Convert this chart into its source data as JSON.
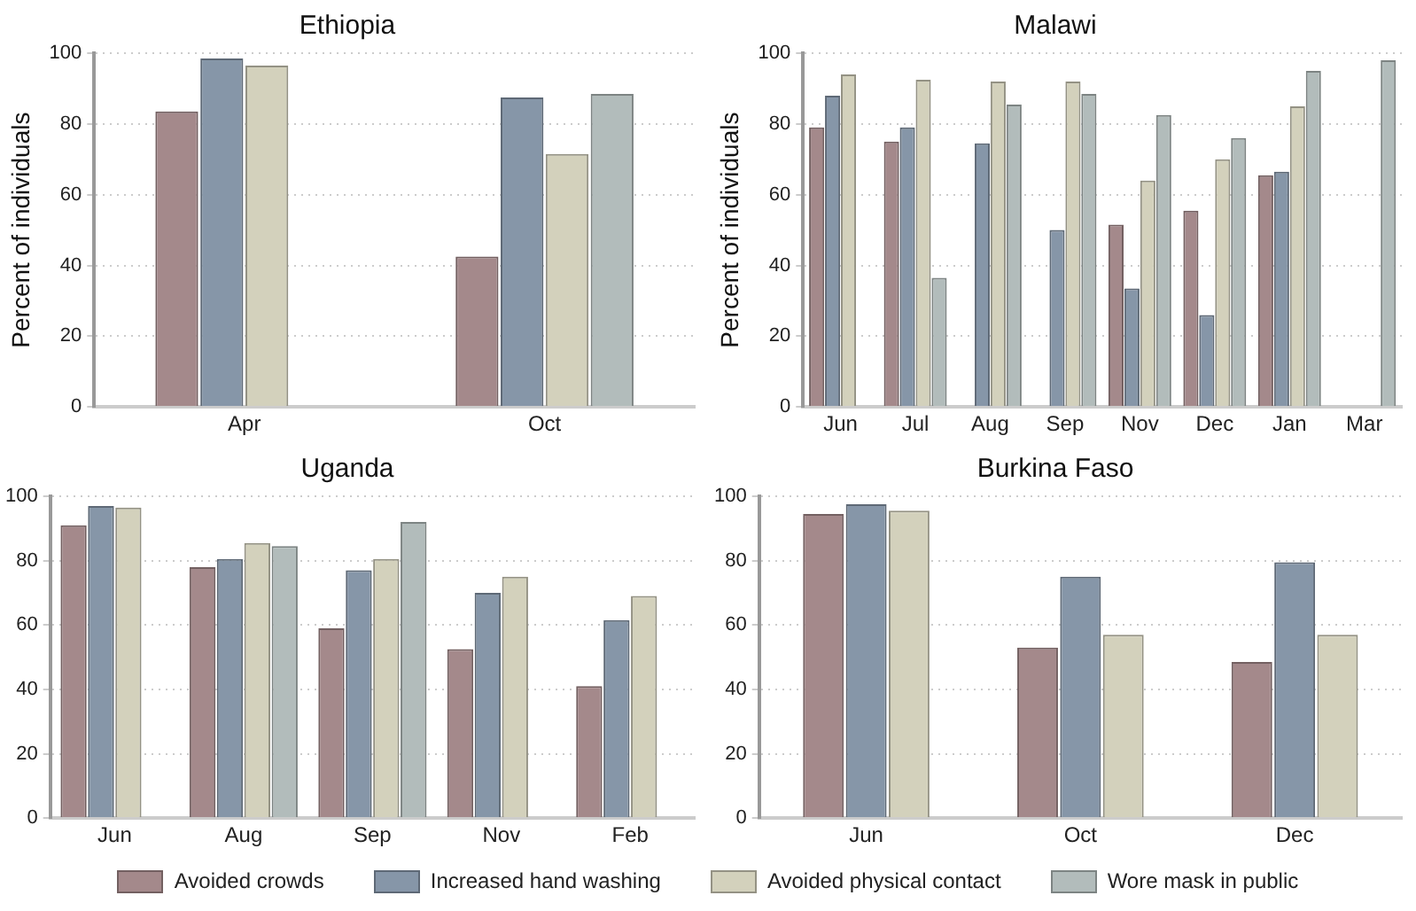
{
  "chart_data": [
    {
      "type": "bar",
      "title": "Ethiopia",
      "ylabel": "Percent of individuals",
      "categories": [
        "Apr",
        "Oct"
      ],
      "ylim": [
        0,
        100
      ],
      "yticks": [
        0,
        20,
        40,
        60,
        80,
        100
      ],
      "grid": "y",
      "legend": "bottom",
      "series": [
        {
          "name": "Avoided crowds",
          "color": "#a4898b",
          "values": [
            83.5,
            42.5
          ]
        },
        {
          "name": "Increased hand washing",
          "color": "#8696a8",
          "values": [
            98.5,
            87.5
          ]
        },
        {
          "name": "Avoided physical contact",
          "color": "#d3d1bc",
          "values": [
            96.5,
            71.5
          ]
        },
        {
          "name": "Wore mask in public",
          "color": "#b2bcbb",
          "values": [
            null,
            88.5
          ]
        }
      ]
    },
    {
      "type": "bar",
      "title": "Malawi",
      "ylabel": "Percent of individuals",
      "categories": [
        "Jun",
        "Jul",
        "Aug",
        "Sep",
        "Nov",
        "Dec",
        "Jan",
        "Mar"
      ],
      "ylim": [
        0,
        100
      ],
      "yticks": [
        0,
        20,
        40,
        60,
        80,
        100
      ],
      "grid": "y",
      "series": [
        {
          "color": "#a4898b",
          "values": [
            79,
            75,
            null,
            null,
            51.5,
            55.5,
            65.5,
            null
          ]
        },
        {
          "color": "#8696a8",
          "values": [
            88,
            79,
            74.5,
            50,
            33.5,
            26,
            66.5,
            null
          ]
        },
        {
          "color": "#d3d1bc",
          "values": [
            94,
            92.5,
            92,
            92,
            64,
            70,
            85,
            null
          ]
        },
        {
          "color": "#b2bcbb",
          "values": [
            null,
            36.5,
            85.5,
            88.5,
            82.5,
            76,
            95,
            98
          ]
        }
      ]
    },
    {
      "type": "bar",
      "title": "Uganda",
      "categories": [
        "Jun",
        "Aug",
        "Sep",
        "Nov",
        "Feb"
      ],
      "ylim": [
        0,
        100
      ],
      "yticks": [
        0,
        20,
        40,
        60,
        80,
        100
      ],
      "grid": "y",
      "series": [
        {
          "color": "#a4898b",
          "values": [
            91,
            78,
            59,
            52.5,
            41
          ]
        },
        {
          "color": "#8696a8",
          "values": [
            97,
            80.5,
            77,
            70,
            61.5
          ]
        },
        {
          "color": "#d3d1bc",
          "values": [
            96.5,
            85.5,
            80.5,
            75,
            69
          ]
        },
        {
          "color": "#b2bcbb",
          "values": [
            null,
            84.5,
            92,
            null,
            null
          ]
        }
      ]
    },
    {
      "type": "bar",
      "title": "Burkina Faso",
      "categories": [
        "Jun",
        "Oct",
        "Dec"
      ],
      "ylim": [
        0,
        100
      ],
      "yticks": [
        0,
        20,
        40,
        60,
        80,
        100
      ],
      "grid": "y",
      "series": [
        {
          "color": "#a4898b",
          "values": [
            94.5,
            53,
            48.5
          ]
        },
        {
          "color": "#8696a8",
          "values": [
            97.5,
            75,
            79.5
          ]
        },
        {
          "color": "#d3d1bc",
          "values": [
            95.5,
            57,
            57
          ]
        }
      ]
    }
  ]
}
